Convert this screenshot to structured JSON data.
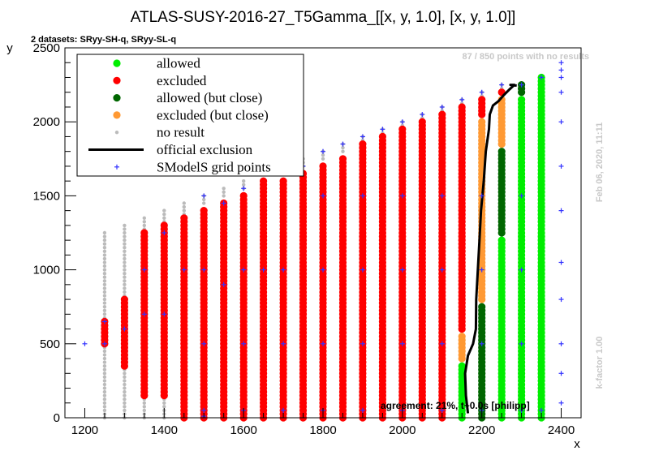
{
  "chart_data": {
    "type": "scatter",
    "title": "ATLAS-SUSY-2016-27_T5Gamma_[[x, y, 1.0], [x, y, 1.0]]",
    "subtitle": "2 datasets: SRyy-SH-q, SRyy-SL-q",
    "xlabel": "x",
    "ylabel": "y",
    "xlim": [
      1150,
      2450
    ],
    "ylim": [
      0,
      2500
    ],
    "xticks": [
      "1200",
      "1400",
      "1600",
      "1800",
      "2000",
      "2200",
      "2400"
    ],
    "yticks": [
      "0",
      "500",
      "1000",
      "1500",
      "2000",
      "2500"
    ],
    "legend_position": "top-left",
    "legend": [
      {
        "label": "allowed",
        "color": "#00ee00",
        "marker": "dot"
      },
      {
        "label": "excluded",
        "color": "#ff0000",
        "marker": "dot"
      },
      {
        "label": "allowed (but close)",
        "color": "#006600",
        "marker": "dot"
      },
      {
        "label": "excluded (but close)",
        "color": "#ff9933",
        "marker": "dot"
      },
      {
        "label": "no result",
        "color": "#bbbbbb",
        "marker": "small-dot"
      },
      {
        "label": "official exclusion",
        "color": "#000000",
        "marker": "line"
      },
      {
        "label": "SModelS grid points",
        "color": "#3333ff",
        "marker": "plus"
      }
    ],
    "status_counts": "87 / 850 points with no results",
    "date_stamp": "Feb 06, 2020, 11:11",
    "kfactor": "k-factor 1.00",
    "agreement": "agreement: 21%, t~0.0s [philipp]",
    "columns": [
      {
        "x": 1250,
        "grey": [
          [
            0,
            1260
          ]
        ],
        "red": [
          [
            500,
            650
          ]
        ]
      },
      {
        "x": 1300,
        "grey": [
          [
            0,
            1300
          ]
        ],
        "red": [
          [
            350,
            800
          ]
        ]
      },
      {
        "x": 1350,
        "grey": [
          [
            0,
            1350
          ]
        ],
        "red": [
          [
            150,
            1260
          ]
        ]
      },
      {
        "x": 1400,
        "grey": [
          [
            0,
            1400
          ]
        ],
        "red": [
          [
            150,
            1300
          ]
        ]
      },
      {
        "x": 1450,
        "grey": [
          [
            0,
            1450
          ]
        ],
        "red": [
          [
            0,
            1350
          ]
        ]
      },
      {
        "x": 1500,
        "grey": [
          [
            1450,
            1500
          ]
        ],
        "red": [
          [
            0,
            1400
          ]
        ]
      },
      {
        "x": 1550,
        "grey": [
          [
            1500,
            1550
          ]
        ],
        "red": [
          [
            0,
            1450
          ]
        ]
      },
      {
        "x": 1600,
        "grey": [
          [
            1550,
            1600
          ]
        ],
        "red": [
          [
            0,
            1500
          ]
        ]
      },
      {
        "x": 1650,
        "grey": [],
        "red": [
          [
            0,
            1600
          ]
        ]
      },
      {
        "x": 1700,
        "grey": [
          [
            1650,
            1700
          ]
        ],
        "red": [
          [
            0,
            1600
          ]
        ]
      },
      {
        "x": 1750,
        "grey": [
          [
            1700,
            1750
          ]
        ],
        "red": [
          [
            0,
            1650
          ]
        ]
      },
      {
        "x": 1800,
        "grey": [
          [
            1750,
            1800
          ]
        ],
        "red": [
          [
            0,
            1700
          ]
        ]
      },
      {
        "x": 1850,
        "grey": [
          [
            1800,
            1850
          ]
        ],
        "red": [
          [
            0,
            1750
          ]
        ]
      },
      {
        "x": 1900,
        "grey": [
          [
            1850,
            1900
          ]
        ],
        "red": [
          [
            0,
            1850
          ]
        ]
      },
      {
        "x": 1950,
        "grey": [
          [
            1900,
            1950
          ]
        ],
        "red": [
          [
            0,
            1900
          ]
        ]
      },
      {
        "x": 2000,
        "grey": [
          [
            1950,
            2000
          ]
        ],
        "red": [
          [
            0,
            1950
          ]
        ]
      },
      {
        "x": 2050,
        "grey": [
          [
            2000,
            2050
          ]
        ],
        "red": [
          [
            0,
            2000
          ]
        ]
      },
      {
        "x": 2100,
        "grey": [
          [
            2050,
            2100
          ]
        ],
        "red": [
          [
            0,
            2050
          ]
        ]
      },
      {
        "x": 2150,
        "grey": [
          [
            2100,
            2150
          ]
        ],
        "red": [
          [
            600,
            2100
          ]
        ],
        "orange": [
          [
            400,
            550
          ]
        ],
        "lime": [
          [
            0,
            350
          ]
        ]
      },
      {
        "x": 2200,
        "grey": [
          [
            2150,
            2200
          ]
        ],
        "red": [
          [
            2050,
            2150
          ]
        ],
        "orange": [
          [
            800,
            2000
          ]
        ],
        "dkgreen": [
          [
            0,
            750
          ]
        ]
      },
      {
        "x": 2250,
        "grey": [
          [
            2200,
            2250
          ]
        ],
        "red": [
          [
            2200,
            2200
          ]
        ],
        "orange": [
          [
            1850,
            2150
          ]
        ],
        "dkgreen": [
          [
            1250,
            1800
          ]
        ],
        "lime": [
          [
            0,
            1200
          ]
        ]
      },
      {
        "x": 2300,
        "grey": [],
        "dkgreen": [
          [
            2200,
            2250
          ]
        ],
        "lime": [
          [
            0,
            2150
          ]
        ]
      },
      {
        "x": 2350,
        "grey": [],
        "lime": [
          [
            0,
            2300
          ]
        ]
      }
    ],
    "grid_points": [
      [
        1200,
        500
      ],
      [
        1250,
        650
      ],
      [
        1250,
        500
      ],
      [
        1300,
        600
      ],
      [
        1350,
        700
      ],
      [
        1350,
        1000
      ],
      [
        1400,
        700
      ],
      [
        1400,
        1250
      ],
      [
        1450,
        1000
      ],
      [
        1500,
        1500
      ],
      [
        1500,
        1000
      ],
      [
        1500,
        500
      ],
      [
        1500,
        10
      ],
      [
        1550,
        1450
      ],
      [
        1550,
        900
      ],
      [
        1600,
        1550
      ],
      [
        1600,
        1000
      ],
      [
        1600,
        500
      ],
      [
        1650,
        1000
      ],
      [
        1700,
        1650
      ],
      [
        1700,
        1000
      ],
      [
        1700,
        500
      ],
      [
        1750,
        1700
      ],
      [
        1800,
        1800
      ],
      [
        1800,
        1500
      ],
      [
        1800,
        1000
      ],
      [
        1800,
        500
      ],
      [
        1850,
        1850
      ],
      [
        1900,
        1900
      ],
      [
        1900,
        1500
      ],
      [
        1900,
        1000
      ],
      [
        1900,
        500
      ],
      [
        1950,
        1950
      ],
      [
        2000,
        2000
      ],
      [
        2000,
        1500
      ],
      [
        2000,
        1000
      ],
      [
        2000,
        500
      ],
      [
        2050,
        2050
      ],
      [
        2100,
        2100
      ],
      [
        2100,
        1500
      ],
      [
        2100,
        1000
      ],
      [
        2100,
        500
      ],
      [
        2150,
        2150
      ],
      [
        2200,
        2200
      ],
      [
        2200,
        1500
      ],
      [
        2200,
        1000
      ],
      [
        2200,
        500
      ],
      [
        2250,
        2250
      ],
      [
        2300,
        2250
      ],
      [
        2300,
        1500
      ],
      [
        2300,
        1000
      ],
      [
        2300,
        500
      ],
      [
        2350,
        2300
      ],
      [
        2400,
        2400
      ],
      [
        2400,
        2350
      ],
      [
        2400,
        2300
      ],
      [
        2400,
        2200
      ],
      [
        2400,
        2000
      ],
      [
        2400,
        1700
      ],
      [
        2400,
        1400
      ],
      [
        2400,
        1050
      ],
      [
        2400,
        800
      ],
      [
        2400,
        500
      ],
      [
        2400,
        300
      ],
      [
        2400,
        100
      ],
      [
        1500,
        50
      ],
      [
        1600,
        50
      ],
      [
        1700,
        50
      ],
      [
        1800,
        50
      ],
      [
        1900,
        50
      ],
      [
        2000,
        50
      ],
      [
        2100,
        50
      ],
      [
        2200,
        50
      ],
      [
        2300,
        50
      ],
      [
        2350,
        50
      ]
    ],
    "official_exclusion": [
      [
        2165,
        30
      ],
      [
        2160,
        150
      ],
      [
        2158,
        300
      ],
      [
        2165,
        420
      ],
      [
        2178,
        500
      ],
      [
        2185,
        600
      ],
      [
        2186,
        800
      ],
      [
        2190,
        1000
      ],
      [
        2194,
        1200
      ],
      [
        2198,
        1400
      ],
      [
        2205,
        1600
      ],
      [
        2210,
        1800
      ],
      [
        2218,
        1950
      ],
      [
        2220,
        2050
      ],
      [
        2228,
        2110
      ],
      [
        2242,
        2140
      ],
      [
        2255,
        2180
      ],
      [
        2270,
        2220
      ],
      [
        2282,
        2250
      ],
      [
        2272,
        2250
      ],
      [
        2288,
        2245
      ]
    ],
    "style": {
      "lime": "#00ee00",
      "red": "#ff0000",
      "dkgreen": "#006600",
      "orange": "#ff9933",
      "grey": "#bbbbbb",
      "blue": "#3333ff"
    }
  }
}
